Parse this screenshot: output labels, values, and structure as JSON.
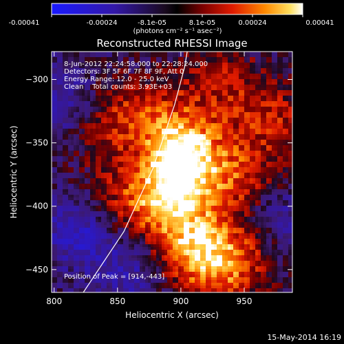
{
  "chart_data": {
    "type": "heatmap",
    "title": "Reconstructed RHESSI Image",
    "xlabel": "Heliocentric X (arcsec)",
    "ylabel": "Heliocentric Y (arcsec)",
    "xlim": [
      798,
      988
    ],
    "ylim": [
      -468,
      -278
    ],
    "xticks": [
      800,
      850,
      900,
      950
    ],
    "yticks": [
      -300,
      -350,
      -400,
      -450
    ],
    "colorbar": {
      "ticks": [
        "-0.00041",
        "-0.00024",
        "-8.1e-05",
        "8.1e-05",
        "0.00024",
        "0.00041"
      ],
      "units": "(photons cm⁻² s⁻¹ asec⁻²)",
      "range": [
        -0.00041,
        0.00041
      ]
    },
    "annotations": [
      "8-Jun-2012 22:24:58.000 to 22:28:24.000",
      "Detectors: 3F 5F 6F 7F 8F 9F, Att 0",
      "Energy Range: 12.0 - 25.0 keV",
      "Clean    Total counts: 3.93E+03"
    ],
    "peak_label": "Position of Peak = [914,-443]",
    "peak": [
      914,
      -443
    ],
    "limb_points": [
      [
        823,
        -468
      ],
      [
        855,
        -420
      ],
      [
        878,
        -370
      ],
      [
        895,
        -320
      ],
      [
        903,
        -290
      ],
      [
        905,
        -278
      ]
    ],
    "hot_sources": [
      {
        "x": 905,
        "y": -360,
        "amp": 1.0
      },
      {
        "x": 890,
        "y": -395,
        "amp": 0.85
      },
      {
        "x": 910,
        "y": -435,
        "amp": 0.75
      },
      {
        "x": 940,
        "y": -445,
        "amp": 0.65
      },
      {
        "x": 950,
        "y": -380,
        "amp": 0.5
      },
      {
        "x": 970,
        "y": -330,
        "amp": 0.45
      },
      {
        "x": 835,
        "y": -330,
        "amp": 0.55
      },
      {
        "x": 880,
        "y": -330,
        "amp": 0.45
      },
      {
        "x": 850,
        "y": -395,
        "amp": 0.35
      },
      {
        "x": 930,
        "y": -300,
        "amp": 0.4
      }
    ],
    "cold_sources": [
      {
        "x": 815,
        "y": -320,
        "amp": 0.9
      },
      {
        "x": 820,
        "y": -420,
        "amp": 0.8
      },
      {
        "x": 860,
        "y": -450,
        "amp": 0.6
      },
      {
        "x": 975,
        "y": -405,
        "amp": 0.55
      }
    ]
  },
  "footer": {
    "timestamp": "15-May-2014 16:19"
  }
}
